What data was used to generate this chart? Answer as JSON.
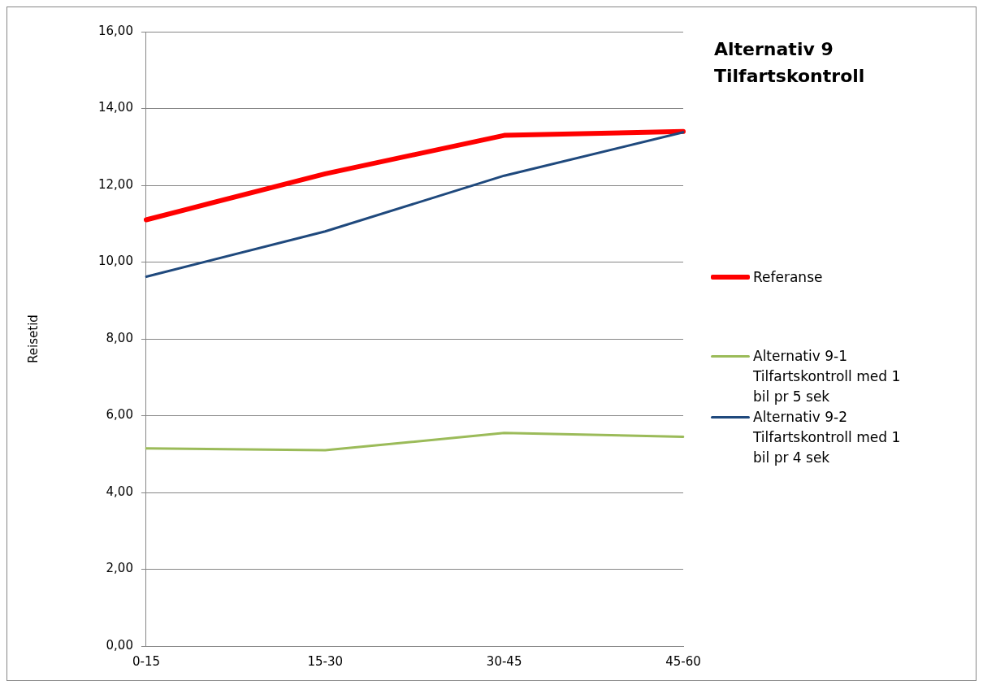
{
  "chart_data": {
    "type": "line",
    "title": "Alternativ 9 Tilfartskontroll",
    "ylabel": "Reisetid",
    "categories": [
      "0-15",
      "15-30",
      "30-45",
      "45-60"
    ],
    "series": [
      {
        "name": "Referanse",
        "color": "#ff0000",
        "values": [
          11.1,
          12.3,
          13.3,
          13.4
        ]
      },
      {
        "name": "Alternativ 9-1 Tilfartskontroll med 1 bil pr 5 sek",
        "color": "#9bbb59",
        "values": [
          5.15,
          5.1,
          5.55,
          5.45
        ]
      },
      {
        "name": "Alternativ 9-2 Tilfartskontroll med 1 bil pr 4 sek",
        "color": "#1f497d",
        "values": [
          9.62,
          10.8,
          12.25,
          13.38
        ]
      }
    ],
    "ylim": [
      0,
      16
    ],
    "yticks": [
      {
        "value": 0,
        "label": "0,00"
      },
      {
        "value": 2,
        "label": "2,00"
      },
      {
        "value": 4,
        "label": "4,00"
      },
      {
        "value": 6,
        "label": "6,00"
      },
      {
        "value": 8,
        "label": "8,00"
      },
      {
        "value": 10,
        "label": "10,00"
      },
      {
        "value": 12,
        "label": "12,00"
      },
      {
        "value": 14,
        "label": "14,00"
      },
      {
        "value": 16,
        "label": "16,00"
      }
    ],
    "grid": "y",
    "legend": "right",
    "marker": "none",
    "line_style": "solid"
  }
}
